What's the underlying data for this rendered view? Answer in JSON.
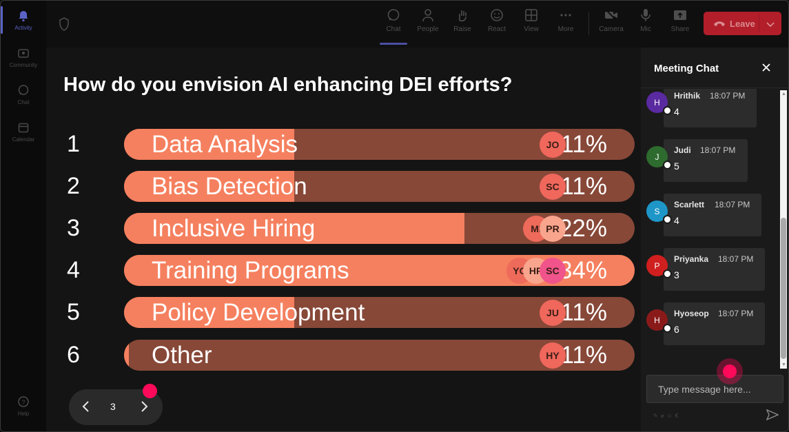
{
  "rail": {
    "items": [
      {
        "label": "Activity",
        "icon": "bell-icon",
        "active": true
      },
      {
        "label": "Community",
        "icon": "community-icon",
        "active": false
      },
      {
        "label": "Chat",
        "icon": "chat-icon",
        "active": false
      },
      {
        "label": "Calendar",
        "icon": "calendar-icon",
        "active": false
      }
    ],
    "help_label": "Help"
  },
  "toolbar": {
    "items": [
      {
        "label": "Chat",
        "icon": "chat-icon",
        "selected": true
      },
      {
        "label": "People",
        "icon": "people-icon"
      },
      {
        "label": "Raise",
        "icon": "raise-hand-icon"
      },
      {
        "label": "React",
        "icon": "react-icon"
      },
      {
        "label": "View",
        "icon": "view-grid-icon"
      },
      {
        "label": "More",
        "icon": "more-icon"
      },
      {
        "label": "Camera",
        "icon": "camera-off-icon"
      },
      {
        "label": "Mic",
        "icon": "mic-icon"
      },
      {
        "label": "Share",
        "icon": "share-icon"
      }
    ],
    "leave_label": "Leave"
  },
  "poll": {
    "question": "How do you envision AI enhancing DEI efforts?",
    "options": [
      {
        "num": "1",
        "label": "Data Analysis",
        "percent_text": "11%",
        "percent": 11,
        "avatars": [
          {
            "initials": "JO",
            "color": "#f0675c"
          }
        ]
      },
      {
        "num": "2",
        "label": "Bias Detection",
        "percent_text": "11%",
        "percent": 11,
        "avatars": [
          {
            "initials": "SC",
            "color": "#f0675c"
          }
        ]
      },
      {
        "num": "3",
        "label": "Inclusive Hiring",
        "percent_text": "22%",
        "percent": 22,
        "avatars": [
          {
            "initials": "MI",
            "color": "#ee6a5a"
          },
          {
            "initials": "PR",
            "color": "#f9a58d"
          }
        ]
      },
      {
        "num": "4",
        "label": "Training Programs",
        "percent_text": "34%",
        "percent": 34,
        "avatars": [
          {
            "initials": "YC",
            "color": "#ee6a5a"
          },
          {
            "initials": "HR",
            "color": "#f9a58d"
          },
          {
            "initials": "SC",
            "color": "#f0548a"
          }
        ]
      },
      {
        "num": "5",
        "label": "Policy Development",
        "percent_text": "11%",
        "percent": 11,
        "avatars": [
          {
            "initials": "JU",
            "color": "#f0675c"
          }
        ]
      },
      {
        "num": "6",
        "label": "Other",
        "percent_text": "11%",
        "percent": 11,
        "avatars": [
          {
            "initials": "HY",
            "color": "#f0675c"
          }
        ]
      }
    ]
  },
  "pager": {
    "current": "3"
  },
  "chat": {
    "title": "Meeting Chat",
    "messages": [
      {
        "initial": "H",
        "name": "Hrithik",
        "time": "18:07 PM",
        "text": "4",
        "color": "#5a2aa0"
      },
      {
        "initial": "J",
        "name": "Judi",
        "time": "18:07 PM",
        "text": "5",
        "color": "#2e6b2e"
      },
      {
        "initial": "S",
        "name": "Scarlett",
        "time": "18:07 PM",
        "text": "4",
        "color": "#1e96c8"
      },
      {
        "initial": "P",
        "name": "Priyanka",
        "time": "18:07 PM",
        "text": "3",
        "color": "#d01f1f"
      },
      {
        "initial": "H",
        "name": "Hyoseop",
        "time": "18:07 PM",
        "text": "6",
        "color": "#8a1a1a"
      }
    ],
    "input_placeholder": "Type message here..."
  }
}
